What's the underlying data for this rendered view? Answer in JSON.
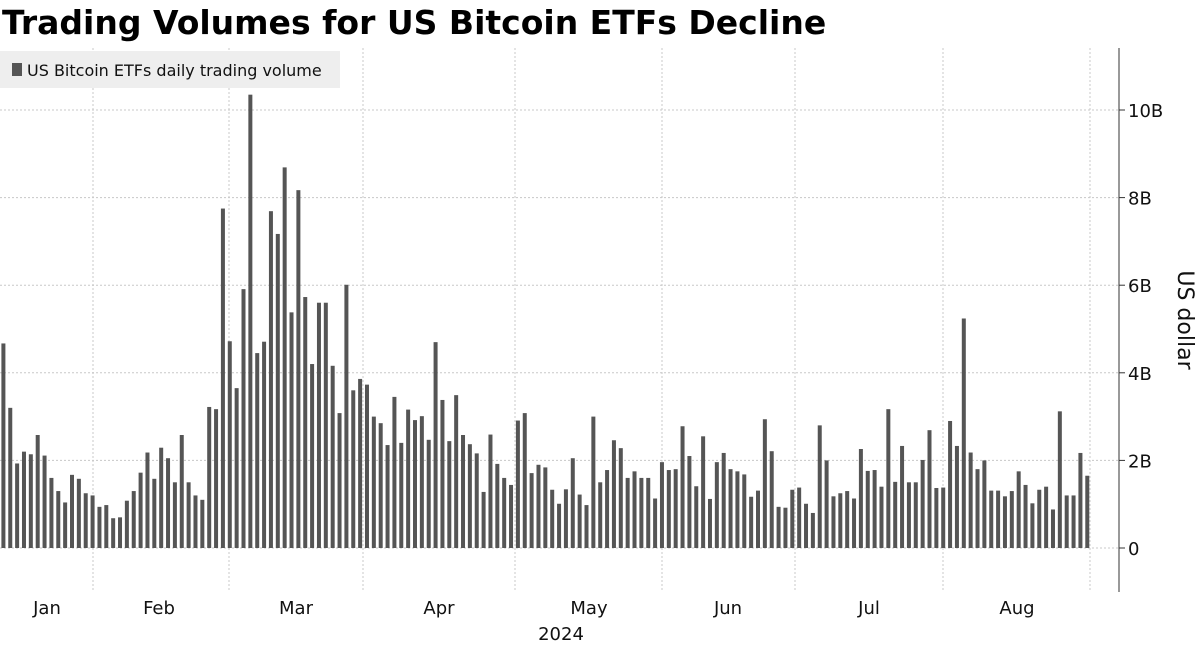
{
  "chart_data": {
    "type": "bar",
    "title": "Trading Volumes for US Bitcoin ETFs Decline",
    "ylabel": "US dollar",
    "xlabel": "2024",
    "ylim": [
      -1,
      11.4
    ],
    "yticks": [
      0,
      2,
      4,
      6,
      8,
      10
    ],
    "ytick_labels": [
      "0",
      "2B",
      "4B",
      "6B",
      "8B",
      "10B"
    ],
    "x_month_labels": [
      "Jan",
      "Feb",
      "Mar",
      "Apr",
      "May",
      "Jun",
      "Jul",
      "Aug"
    ],
    "year_label": "2024",
    "colors": {
      "bar": "#555555",
      "grid": "#c8c8c8",
      "axis": "#333333",
      "legend_bg": "#eeeeee"
    },
    "series": [
      {
        "name": "US Bitcoin ETFs daily trading volume",
        "unit": "billion USD",
        "values": [
          4.67,
          3.2,
          1.93,
          2.2,
          2.14,
          2.58,
          2.11,
          1.6,
          1.3,
          1.04,
          1.67,
          1.58,
          1.25,
          1.2,
          0.94,
          0.98,
          0.68,
          0.7,
          1.08,
          1.3,
          1.72,
          2.18,
          1.58,
          2.29,
          2.05,
          1.5,
          2.58,
          1.5,
          1.2,
          1.1,
          3.22,
          3.17,
          7.75,
          4.72,
          3.65,
          5.91,
          10.35,
          4.45,
          4.71,
          7.69,
          7.17,
          8.69,
          5.38,
          8.17,
          5.73,
          4.2,
          5.6,
          5.6,
          4.16,
          3.08,
          6.01,
          3.6,
          3.86,
          3.73,
          3.0,
          2.85,
          2.35,
          3.45,
          2.4,
          3.16,
          2.92,
          3.01,
          2.47,
          4.7,
          3.38,
          2.44,
          3.49,
          2.58,
          2.37,
          2.16,
          1.28,
          2.59,
          1.92,
          1.6,
          1.44,
          2.91,
          3.08,
          1.71,
          1.9,
          1.84,
          1.33,
          1.01,
          1.34,
          2.05,
          1.22,
          0.98,
          3.0,
          1.5,
          1.78,
          2.46,
          2.28,
          1.6,
          1.75,
          1.6,
          1.6,
          1.13,
          1.96,
          1.78,
          1.8,
          2.78,
          2.1,
          1.41,
          2.55,
          1.12,
          1.96,
          2.17,
          1.8,
          1.75,
          1.68,
          1.17,
          1.31,
          2.94,
          2.21,
          0.94,
          0.92,
          1.33,
          1.38,
          1.01,
          0.8,
          2.8,
          2.0,
          1.18,
          1.25,
          1.3,
          1.13,
          2.26,
          1.76,
          1.78,
          1.4,
          3.17,
          1.51,
          2.33,
          1.5,
          1.5,
          2.01,
          2.69,
          1.37,
          1.38,
          2.9,
          2.33,
          5.24,
          2.18,
          1.8,
          2.0,
          1.31,
          1.31,
          1.18,
          1.3,
          1.75,
          1.44,
          1.02,
          1.33,
          1.4,
          0.88,
          3.12,
          1.2,
          1.2,
          2.17,
          1.65
        ]
      }
    ],
    "legend": {
      "position": "top-left",
      "entries": [
        "US Bitcoin ETFs daily trading volume"
      ]
    }
  }
}
